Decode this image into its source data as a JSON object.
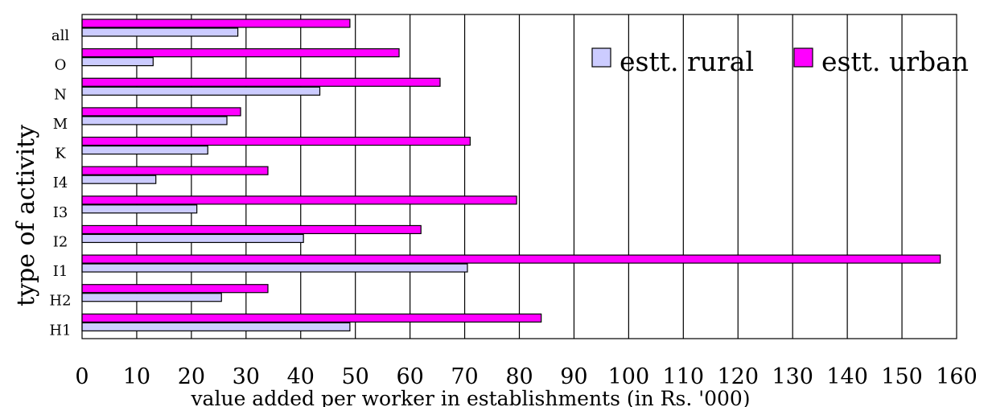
{
  "chart_data": {
    "type": "bar",
    "orientation": "horizontal",
    "title": "",
    "xlabel": "value added per worker in establishments (in Rs. '000)",
    "ylabel": "type of activity",
    "xlim": [
      0,
      160
    ],
    "x_ticks": [
      "0",
      "10",
      "20",
      "30",
      "40",
      "50",
      "60",
      "70",
      "80",
      "90",
      "100",
      "110",
      "120",
      "130",
      "140",
      "150",
      "160"
    ],
    "grid": "vertical",
    "legend_position": "top-right",
    "categories": [
      "all",
      "O",
      "N",
      "M",
      "K",
      "I4",
      "I3",
      "I2",
      "I1",
      "H2",
      "H1"
    ],
    "series": [
      {
        "name": "estt. rural",
        "color": "#ccccff",
        "values": [
          28.5,
          13,
          43.5,
          26.5,
          23,
          13.5,
          21,
          40.5,
          70.5,
          25.5,
          49
        ]
      },
      {
        "name": "estt. urban",
        "color": "#ff00ff",
        "values": [
          49,
          58,
          65.5,
          29,
          71,
          34,
          79.5,
          62,
          157,
          34,
          84
        ]
      }
    ]
  }
}
